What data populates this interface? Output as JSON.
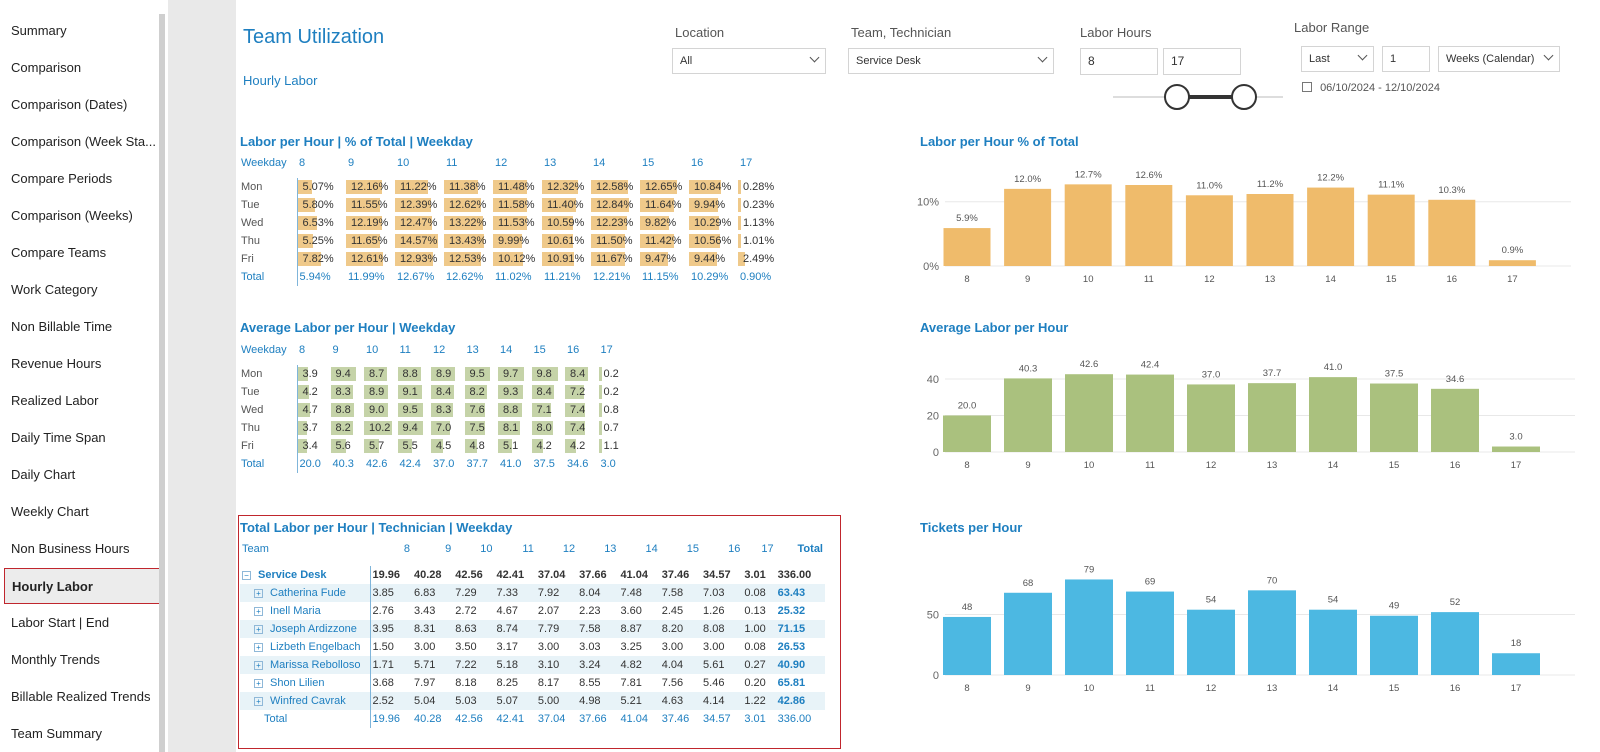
{
  "sidebar": {
    "items": [
      "Summary",
      "Comparison",
      "Comparison (Dates)",
      "Comparison (Week Sta...",
      "Compare Periods",
      "Comparison (Weeks)",
      "Compare Teams",
      "Work Category",
      "Non Billable Time",
      "Revenue Hours",
      "Realized Labor",
      "Daily Time Span",
      "Daily Chart",
      "Weekly Chart",
      "Non Business Hours",
      "Hourly Labor",
      "Labor Start | End",
      "Monthly Trends",
      "Billable Realized Trends",
      "Team Summary"
    ],
    "active_index": 15
  },
  "header": {
    "title": "Team Utilization",
    "subtitle": "Hourly Labor"
  },
  "filters": {
    "location": {
      "label": "Location",
      "value": "All"
    },
    "team": {
      "label": "Team, Technician",
      "value": "Service Desk"
    },
    "labor_hours": {
      "label": "Labor Hours",
      "from": "8",
      "to": "17"
    },
    "labor_range": {
      "label": "Labor Range",
      "mode": "Last",
      "count": "1",
      "unit": "Weeks (Calendar)",
      "dates": "06/10/2024 - 12/10/2024"
    }
  },
  "colors": {
    "accent": "#1e7fc0",
    "orange": "#efbb6b",
    "green": "#aac17e",
    "blue": "#4cb8e2",
    "highlight": "#c0262d"
  },
  "matrix1": {
    "title": "Labor per Hour | % of Total | Weekday",
    "corner": "Weekday",
    "hours": [
      "8",
      "9",
      "10",
      "11",
      "12",
      "13",
      "14",
      "15",
      "16",
      "17"
    ],
    "rows": [
      {
        "label": "Mon",
        "values": [
          "5.07%",
          "12.16%",
          "11.22%",
          "11.38%",
          "11.48%",
          "12.32%",
          "12.58%",
          "12.65%",
          "10.84%",
          "0.28%"
        ],
        "nums": [
          5.07,
          12.16,
          11.22,
          11.38,
          11.48,
          12.32,
          12.58,
          12.65,
          10.84,
          0.28
        ]
      },
      {
        "label": "Tue",
        "values": [
          "5.80%",
          "11.55%",
          "12.39%",
          "12.62%",
          "11.58%",
          "11.40%",
          "12.84%",
          "11.64%",
          "9.94%",
          "0.23%"
        ],
        "nums": [
          5.8,
          11.55,
          12.39,
          12.62,
          11.58,
          11.4,
          12.84,
          11.64,
          9.94,
          0.23
        ]
      },
      {
        "label": "Wed",
        "values": [
          "6.53%",
          "12.19%",
          "12.47%",
          "13.22%",
          "11.53%",
          "10.59%",
          "12.23%",
          "9.82%",
          "10.29%",
          "1.13%"
        ],
        "nums": [
          6.53,
          12.19,
          12.47,
          13.22,
          11.53,
          10.59,
          12.23,
          9.82,
          10.29,
          1.13
        ]
      },
      {
        "label": "Thu",
        "values": [
          "5.25%",
          "11.65%",
          "14.57%",
          "13.43%",
          "9.99%",
          "10.61%",
          "11.50%",
          "11.42%",
          "10.56%",
          "1.01%"
        ],
        "nums": [
          5.25,
          11.65,
          14.57,
          13.43,
          9.99,
          10.61,
          11.5,
          11.42,
          10.56,
          1.01
        ]
      },
      {
        "label": "Fri",
        "values": [
          "7.82%",
          "12.61%",
          "12.93%",
          "12.53%",
          "10.12%",
          "10.91%",
          "11.67%",
          "9.47%",
          "9.44%",
          "2.49%"
        ],
        "nums": [
          7.82,
          12.61,
          12.93,
          12.53,
          10.12,
          10.91,
          11.67,
          9.47,
          9.44,
          2.49
        ]
      }
    ],
    "total": {
      "label": "Total",
      "values": [
        "5.94%",
        "11.99%",
        "12.67%",
        "12.62%",
        "11.02%",
        "11.21%",
        "12.21%",
        "11.15%",
        "10.29%",
        "0.90%"
      ]
    }
  },
  "matrix2": {
    "title": "Average Labor per Hour | Weekday",
    "corner": "Weekday",
    "hours": [
      "8",
      "9",
      "10",
      "11",
      "12",
      "13",
      "14",
      "15",
      "16",
      "17"
    ],
    "rows": [
      {
        "label": "Mon",
        "values": [
          "3.9",
          "9.4",
          "8.7",
          "8.8",
          "8.9",
          "9.5",
          "9.7",
          "9.8",
          "8.4",
          "0.2"
        ],
        "nums": [
          3.9,
          9.4,
          8.7,
          8.8,
          8.9,
          9.5,
          9.7,
          9.8,
          8.4,
          0.2
        ]
      },
      {
        "label": "Tue",
        "values": [
          "4.2",
          "8.3",
          "8.9",
          "9.1",
          "8.4",
          "8.2",
          "9.3",
          "8.4",
          "7.2",
          "0.2"
        ],
        "nums": [
          4.2,
          8.3,
          8.9,
          9.1,
          8.4,
          8.2,
          9.3,
          8.4,
          7.2,
          0.2
        ]
      },
      {
        "label": "Wed",
        "values": [
          "4.7",
          "8.8",
          "9.0",
          "9.5",
          "8.3",
          "7.6",
          "8.8",
          "7.1",
          "7.4",
          "0.8"
        ],
        "nums": [
          4.7,
          8.8,
          9.0,
          9.5,
          8.3,
          7.6,
          8.8,
          7.1,
          7.4,
          0.8
        ]
      },
      {
        "label": "Thu",
        "values": [
          "3.7",
          "8.2",
          "10.2",
          "9.4",
          "7.0",
          "7.5",
          "8.1",
          "8.0",
          "7.4",
          "0.7"
        ],
        "nums": [
          3.7,
          8.2,
          10.2,
          9.4,
          7.0,
          7.5,
          8.1,
          8.0,
          7.4,
          0.7
        ]
      },
      {
        "label": "Fri",
        "values": [
          "3.4",
          "5.6",
          "5.7",
          "5.5",
          "4.5",
          "4.8",
          "5.1",
          "4.2",
          "4.2",
          "1.1"
        ],
        "nums": [
          3.4,
          5.6,
          5.7,
          5.5,
          4.5,
          4.8,
          5.1,
          4.2,
          4.2,
          1.1
        ]
      }
    ],
    "total": {
      "label": "Total",
      "values": [
        "20.0",
        "40.3",
        "42.6",
        "42.4",
        "37.0",
        "37.7",
        "41.0",
        "37.5",
        "34.6",
        "3.0"
      ]
    }
  },
  "matrix3": {
    "title": "Total Labor per Hour | Technician | Weekday",
    "corner": "Team",
    "hours": [
      "8",
      "9",
      "10",
      "11",
      "12",
      "13",
      "14",
      "15",
      "16",
      "17"
    ],
    "total_header": "Total",
    "group": {
      "label": "Service Desk",
      "values": [
        "19.96",
        "40.28",
        "42.56",
        "42.41",
        "37.04",
        "37.66",
        "41.04",
        "37.46",
        "34.57",
        "3.01"
      ],
      "total": "336.00"
    },
    "rows": [
      {
        "label": "Catherina Fude",
        "values": [
          "3.85",
          "6.83",
          "7.29",
          "7.33",
          "7.92",
          "8.04",
          "7.48",
          "7.58",
          "7.03",
          "0.08"
        ],
        "total": "63.43"
      },
      {
        "label": "Inell Maria",
        "values": [
          "2.76",
          "3.43",
          "2.72",
          "4.67",
          "2.07",
          "2.23",
          "3.60",
          "2.45",
          "1.26",
          "0.13"
        ],
        "total": "25.32"
      },
      {
        "label": "Joseph Ardizzone",
        "values": [
          "3.95",
          "8.31",
          "8.63",
          "8.74",
          "7.79",
          "7.58",
          "8.87",
          "8.20",
          "8.08",
          "1.00"
        ],
        "total": "71.15"
      },
      {
        "label": "Lizbeth Engelbach",
        "values": [
          "1.50",
          "3.00",
          "3.50",
          "3.17",
          "3.00",
          "3.03",
          "3.25",
          "3.00",
          "3.00",
          "0.08"
        ],
        "total": "26.53"
      },
      {
        "label": "Marissa Rebolloso",
        "values": [
          "1.71",
          "5.71",
          "7.22",
          "5.18",
          "3.10",
          "3.24",
          "4.82",
          "4.04",
          "5.61",
          "0.27"
        ],
        "total": "40.90"
      },
      {
        "label": "Shon Lilien",
        "values": [
          "3.68",
          "7.97",
          "8.18",
          "8.25",
          "8.17",
          "8.55",
          "7.81",
          "7.56",
          "5.46",
          "0.20"
        ],
        "total": "65.81"
      },
      {
        "label": "Winfred Cavrak",
        "values": [
          "2.52",
          "5.04",
          "5.03",
          "5.07",
          "5.00",
          "4.98",
          "5.21",
          "4.63",
          "4.14",
          "1.22"
        ],
        "total": "42.86"
      }
    ],
    "total": {
      "label": "Total",
      "values": [
        "19.96",
        "40.28",
        "42.56",
        "42.41",
        "37.04",
        "37.66",
        "41.04",
        "37.46",
        "34.57",
        "3.01"
      ],
      "total": "336.00"
    }
  },
  "chart_data": [
    {
      "type": "bar",
      "title": "Labor per Hour % of Total",
      "categories": [
        "8",
        "9",
        "10",
        "11",
        "12",
        "13",
        "14",
        "15",
        "16",
        "17"
      ],
      "values": [
        5.9,
        12.0,
        12.7,
        12.6,
        11.0,
        11.2,
        12.2,
        11.1,
        10.3,
        0.9
      ],
      "labels": [
        "5.9%",
        "12.0%",
        "12.7%",
        "12.6%",
        "11.0%",
        "11.2%",
        "12.2%",
        "11.1%",
        "10.3%",
        "0.9%"
      ],
      "ticks": [
        {
          "v": 0,
          "t": "0%"
        },
        {
          "v": 10,
          "t": "10%"
        }
      ],
      "ylim": [
        0,
        14
      ],
      "color": "#efbb6b"
    },
    {
      "type": "bar",
      "title": "Average Labor per Hour",
      "categories": [
        "8",
        "9",
        "10",
        "11",
        "12",
        "13",
        "14",
        "15",
        "16",
        "17"
      ],
      "values": [
        20.0,
        40.3,
        42.6,
        42.4,
        37.0,
        37.7,
        41.0,
        37.5,
        34.6,
        3.0
      ],
      "labels": [
        "20.0",
        "40.3",
        "42.6",
        "42.4",
        "37.0",
        "37.7",
        "41.0",
        "37.5",
        "34.6",
        "3.0"
      ],
      "ticks": [
        {
          "v": 0,
          "t": "0"
        },
        {
          "v": 20,
          "t": "20"
        },
        {
          "v": 40,
          "t": "40"
        }
      ],
      "ylim": [
        0,
        46
      ],
      "color": "#aac17e"
    },
    {
      "type": "bar",
      "title": "Tickets per Hour",
      "categories": [
        "8",
        "9",
        "10",
        "11",
        "12",
        "13",
        "14",
        "15",
        "16",
        "17"
      ],
      "values": [
        48,
        68,
        79,
        69,
        54,
        70,
        54,
        49,
        52,
        18
      ],
      "labels": [
        "48",
        "68",
        "79",
        "69",
        "54",
        "70",
        "54",
        "49",
        "52",
        "18"
      ],
      "ticks": [
        {
          "v": 0,
          "t": "0"
        },
        {
          "v": 50,
          "t": "50"
        }
      ],
      "ylim": [
        0,
        86
      ],
      "color": "#4cb8e2"
    }
  ]
}
